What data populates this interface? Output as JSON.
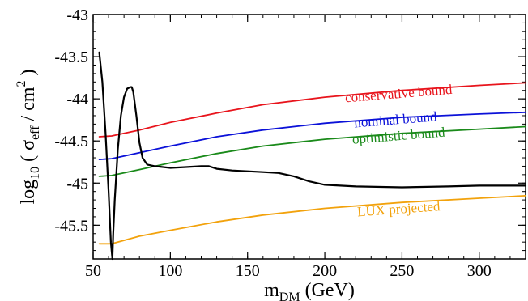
{
  "chart_data": {
    "type": "line",
    "title": "",
    "xlabel": {
      "main": "m",
      "sub": "DM",
      "unit": " (GeV)"
    },
    "ylabel": {
      "pre": "log",
      "pre_sub": "10",
      "open": " ( ",
      "sigma": "σ",
      "sigma_sub": "eff",
      "mid": " / cm",
      "sup": "2",
      "close": " )"
    },
    "xlim": [
      50,
      330
    ],
    "ylim": [
      -45.9,
      -43
    ],
    "x_ticks": [
      50,
      100,
      150,
      200,
      250,
      300
    ],
    "x_tick_labels": [
      "50",
      "100",
      "150",
      "200",
      "250",
      "300"
    ],
    "y_ticks": [
      -43,
      -43.5,
      -44,
      -44.5,
      -45,
      -45.5
    ],
    "y_tick_labels": [
      "-43",
      "-43.5",
      "-44",
      "-44.5",
      "-45",
      "-45.5"
    ],
    "grid": false,
    "legend": "none",
    "series": [
      {
        "name": "conservative bound",
        "color": "#e8141c",
        "x": [
          54,
          62,
          80,
          100,
          130,
          160,
          200,
          250,
          300,
          330
        ],
        "y": [
          -44.45,
          -44.44,
          -44.37,
          -44.28,
          -44.17,
          -44.07,
          -43.98,
          -43.9,
          -43.84,
          -43.81
        ]
      },
      {
        "name": "nominal bound",
        "color": "#0b11d8",
        "x": [
          54,
          62,
          80,
          100,
          130,
          160,
          200,
          250,
          300,
          330
        ],
        "y": [
          -44.72,
          -44.71,
          -44.64,
          -44.56,
          -44.45,
          -44.37,
          -44.29,
          -44.22,
          -44.18,
          -44.16
        ]
      },
      {
        "name": "optimistic bound",
        "color": "#1a8a1a",
        "x": [
          54,
          62,
          80,
          100,
          130,
          160,
          200,
          250,
          300,
          330
        ],
        "y": [
          -44.92,
          -44.91,
          -44.84,
          -44.76,
          -44.65,
          -44.56,
          -44.48,
          -44.41,
          -44.36,
          -44.33
        ]
      },
      {
        "name": "LUX projected",
        "color": "#f2a20c",
        "x": [
          54,
          62,
          80,
          100,
          130,
          160,
          200,
          250,
          300,
          330
        ],
        "y": [
          -45.72,
          -45.72,
          -45.63,
          -45.56,
          -45.46,
          -45.38,
          -45.3,
          -45.23,
          -45.18,
          -45.15
        ]
      },
      {
        "name": "",
        "color": "#000000",
        "x": [
          54,
          56,
          58,
          60,
          61.5,
          62.5,
          63,
          64,
          66,
          68,
          70,
          72,
          74,
          75,
          76,
          78,
          80,
          82,
          85,
          90,
          100,
          110,
          120,
          125,
          130,
          140,
          150,
          160,
          170,
          180,
          190,
          200,
          220,
          250,
          280,
          300,
          330
        ],
        "y": [
          -43.45,
          -43.8,
          -44.4,
          -45.1,
          -45.7,
          -45.9,
          -45.6,
          -45.2,
          -44.6,
          -44.2,
          -43.98,
          -43.88,
          -43.86,
          -43.86,
          -43.92,
          -44.2,
          -44.52,
          -44.7,
          -44.78,
          -44.8,
          -44.82,
          -44.81,
          -44.8,
          -44.8,
          -44.83,
          -44.85,
          -44.86,
          -44.87,
          -44.88,
          -44.92,
          -44.98,
          -45.02,
          -45.04,
          -45.05,
          -45.04,
          -45.03,
          -45.03
        ]
      }
    ],
    "annotations": [
      {
        "text": "conservative bound",
        "x": 248,
        "y": -43.99,
        "color": "#e8141c",
        "rotate": -4.6
      },
      {
        "text": "nominal bound",
        "x": 246,
        "y": -44.3,
        "color": "#0b11d8",
        "rotate": -4.6
      },
      {
        "text": "optimistic bound",
        "x": 248,
        "y": -44.49,
        "color": "#1a8a1a",
        "rotate": -4.6
      },
      {
        "text": "LUX projected",
        "x": 248,
        "y": -45.36,
        "color": "#f2a20c",
        "rotate": -4.0
      }
    ]
  }
}
